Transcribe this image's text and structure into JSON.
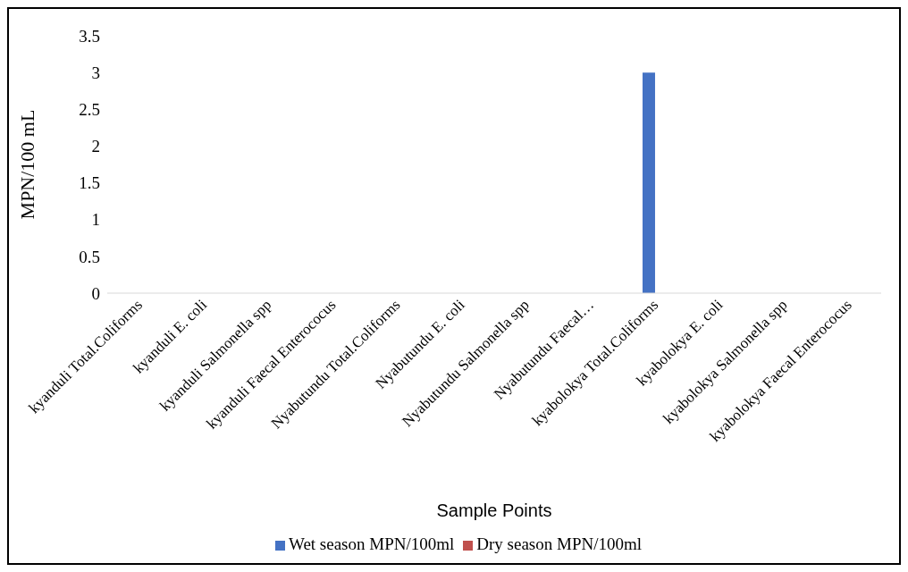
{
  "chart_data": {
    "type": "bar",
    "xlabel": "Sample Points",
    "ylabel": "MPN/100 mL",
    "categories": [
      "kyanduli Total.Coliforms",
      "kyanduli E. coli",
      "kyanduli Salmonella spp",
      "kyanduli Faecal Enterococus",
      "Nyabutundu Total.Coliforms",
      "Nyabutundu E. coli",
      "Nyabutundu Salmonella spp",
      "Nyabutundu Faecal…",
      "kyabolokya Total.Coliforms",
      "kyabolokya E. coli",
      "kyabolokya Salmonella spp",
      "kyabolokya Faecal Enterococus"
    ],
    "series": [
      {
        "name": "Wet season MPN/100ml",
        "color": "#4472c4",
        "values": [
          0,
          0,
          0,
          0,
          0,
          0,
          0,
          0,
          3,
          0,
          0,
          0
        ]
      },
      {
        "name": "Dry season MPN/100ml",
        "color": "#c0504d",
        "values": [
          0,
          0,
          0,
          0,
          0,
          0,
          0,
          0,
          0,
          0,
          0,
          0
        ]
      }
    ],
    "ylim": [
      0,
      3.5
    ],
    "yticks": [
      0,
      0.5,
      1,
      1.5,
      2,
      2.5,
      3,
      3.5
    ],
    "grid": false,
    "legend": "bottom"
  }
}
